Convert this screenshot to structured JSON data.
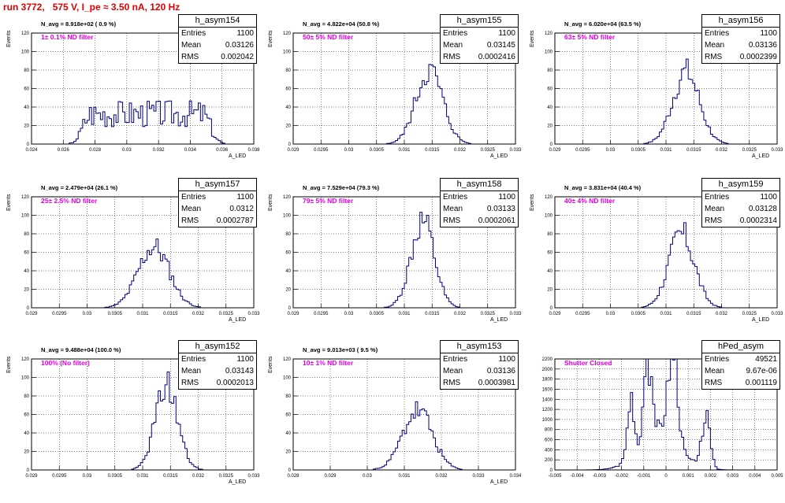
{
  "run_title": "run 3772,   575 V, I_pe ≈ 3.50 nA, 120 Hz",
  "stats_labels": {
    "entries": "Entries",
    "mean": "Mean",
    "rms": "RMS"
  },
  "colors": {
    "title": "#e00000",
    "filter": "#e000e0",
    "hist": "#000080"
  },
  "chart_data": [
    {
      "type": "bar",
      "name": "h_asym154",
      "entries": "1100",
      "mean": "0.03126",
      "rms": "0.002042",
      "navg": "N_avg = 8.918e+02 ( 0.9 %)",
      "filter": "1± 0.1% ND filter",
      "ylabel": "Events",
      "xlabel": "A_LED",
      "xlim": [
        0.024,
        0.038
      ],
      "ylim": [
        0,
        120
      ],
      "xticks": [
        0.024,
        0.026,
        0.028,
        0.03,
        0.032,
        0.034,
        0.036,
        0.038
      ],
      "xtick_labels": [
        "0.024",
        "0.026",
        "0.028",
        "0.03",
        "0.032",
        "0.034",
        "0.036",
        "0.038"
      ],
      "yticks": [
        0,
        20,
        40,
        60,
        80,
        100,
        120
      ],
      "dist": {
        "type": "flat",
        "center": 0.03126,
        "half_width": 0.0035,
        "peak": 33,
        "edge_softness": 0.0007,
        "seed": 3
      }
    },
    {
      "type": "bar",
      "name": "h_asym155",
      "entries": "1100",
      "mean": "0.03145",
      "rms": "0.0002416",
      "navg": "N_avg = 4.822e+04 (50.8 %)",
      "filter": "50± 5% ND filter",
      "ylabel": "Events",
      "xlabel": "A_LED",
      "xlim": [
        0.029,
        0.033
      ],
      "ylim": [
        0,
        120
      ],
      "xticks": [
        0.029,
        0.0295,
        0.03,
        0.0305,
        0.031,
        0.0315,
        0.032,
        0.0325,
        0.033
      ],
      "xtick_labels": [
        "0.029",
        "0.0295",
        "0.03",
        "0.0305",
        "0.031",
        "0.0315",
        "0.032",
        "0.0325",
        "0.033"
      ],
      "yticks": [
        0,
        20,
        40,
        60,
        80,
        100,
        120
      ],
      "dist": {
        "type": "gauss",
        "components": [
          {
            "mu": 0.03145,
            "sigma": 0.00024,
            "amp": 80
          }
        ],
        "seed": 5
      }
    },
    {
      "type": "bar",
      "name": "h_asym156",
      "entries": "1100",
      "mean": "0.03136",
      "rms": "0.0002399",
      "navg": "N_avg = 6.020e+04 (63.5 %)",
      "filter": "63± 5% ND filter",
      "ylabel": "Events",
      "xlabel": "A_LED",
      "xlim": [
        0.029,
        0.033
      ],
      "ylim": [
        0,
        120
      ],
      "xticks": [
        0.029,
        0.0295,
        0.03,
        0.0305,
        0.031,
        0.0315,
        0.032,
        0.0325,
        0.033
      ],
      "xtick_labels": [
        "0.029",
        "0.0295",
        "0.03",
        "0.0305",
        "0.031",
        "0.0315",
        "0.032",
        "0.0325",
        "0.033"
      ],
      "yticks": [
        0,
        20,
        40,
        60,
        80,
        100,
        120
      ],
      "dist": {
        "type": "gauss",
        "components": [
          {
            "mu": 0.03136,
            "sigma": 0.00024,
            "amp": 78
          }
        ],
        "seed": 7
      }
    },
    {
      "type": "bar",
      "name": "h_asym157",
      "entries": "1100",
      "mean": "0.0312",
      "rms": "0.0002787",
      "navg": "N_avg = 2.479e+04 (26.1 %)",
      "filter": "25± 2.5% ND filter",
      "ylabel": "Events",
      "xlabel": "A_LED",
      "xlim": [
        0.029,
        0.033
      ],
      "ylim": [
        0,
        120
      ],
      "xticks": [
        0.029,
        0.0295,
        0.03,
        0.0305,
        0.031,
        0.0315,
        0.032,
        0.0325,
        0.033
      ],
      "xtick_labels": [
        "0.029",
        "0.0295",
        "0.03",
        "0.0305",
        "0.031",
        "0.0315",
        "0.032",
        "0.0325",
        "0.033"
      ],
      "yticks": [
        0,
        20,
        40,
        60,
        80,
        100,
        120
      ],
      "dist": {
        "type": "gauss",
        "components": [
          {
            "mu": 0.0312,
            "sigma": 0.00028,
            "amp": 66
          }
        ],
        "seed": 11
      }
    },
    {
      "type": "bar",
      "name": "h_asym158",
      "entries": "1100",
      "mean": "0.03133",
      "rms": "0.0002061",
      "navg": "N_avg = 7.529e+04 (79.3 %)",
      "filter": "79± 5% ND filter",
      "ylabel": "Events",
      "xlabel": "A_LED",
      "xlim": [
        0.029,
        0.033
      ],
      "ylim": [
        0,
        120
      ],
      "xticks": [
        0.029,
        0.0295,
        0.03,
        0.0305,
        0.031,
        0.0315,
        0.032,
        0.0325,
        0.033
      ],
      "xtick_labels": [
        "0.029",
        "0.0295",
        "0.03",
        "0.0305",
        "0.031",
        "0.0315",
        "0.032",
        "0.0325",
        "0.033"
      ],
      "yticks": [
        0,
        20,
        40,
        60,
        80,
        100,
        120
      ],
      "dist": {
        "type": "gauss",
        "components": [
          {
            "mu": 0.03133,
            "sigma": 0.00021,
            "amp": 94
          }
        ],
        "seed": 13
      }
    },
    {
      "type": "bar",
      "name": "h_asym159",
      "entries": "1100",
      "mean": "0.03128",
      "rms": "0.0002314",
      "navg": "N_avg = 3.831e+04 (40.4 %)",
      "filter": "40± 4% ND filter",
      "ylabel": "Events",
      "xlabel": "A_LED",
      "xlim": [
        0.029,
        0.033
      ],
      "ylim": [
        0,
        120
      ],
      "xticks": [
        0.029,
        0.0295,
        0.03,
        0.0305,
        0.031,
        0.0315,
        0.032,
        0.0325,
        0.033
      ],
      "xtick_labels": [
        "0.029",
        "0.0295",
        "0.03",
        "0.0305",
        "0.031",
        "0.0315",
        "0.032",
        "0.0325",
        "0.033"
      ],
      "yticks": [
        0,
        20,
        40,
        60,
        80,
        100,
        120
      ],
      "dist": {
        "type": "gauss",
        "components": [
          {
            "mu": 0.03128,
            "sigma": 0.00023,
            "amp": 80
          }
        ],
        "seed": 17
      }
    },
    {
      "type": "bar",
      "name": "h_asym152",
      "entries": "1100",
      "mean": "0.03143",
      "rms": "0.0002013",
      "navg": "N_avg = 9.488e+04 (100.0 %)",
      "filter": "100% (No filter)",
      "ylabel": "Events",
      "xlabel": "A_LED",
      "xlim": [
        0.029,
        0.033
      ],
      "ylim": [
        0,
        120
      ],
      "xticks": [
        0.029,
        0.0295,
        0.03,
        0.0305,
        0.031,
        0.0315,
        0.032,
        0.0325,
        0.033
      ],
      "xtick_labels": [
        "0.029",
        "0.0295",
        "0.03",
        "0.0305",
        "0.031",
        "0.0315",
        "0.032",
        "0.0325",
        "0.033"
      ],
      "yticks": [
        0,
        20,
        40,
        60,
        80,
        100,
        120
      ],
      "dist": {
        "type": "gauss",
        "components": [
          {
            "mu": 0.03143,
            "sigma": 0.0002,
            "amp": 92
          }
        ],
        "seed": 19
      }
    },
    {
      "type": "bar",
      "name": "h_asym153",
      "entries": "1100",
      "mean": "0.03136",
      "rms": "0.0003981",
      "navg": "N_avg = 9.013e+03 ( 9.5 %)",
      "filter": "10± 1% ND filter",
      "ylabel": "Events",
      "xlabel": "A_LED",
      "xlim": [
        0.028,
        0.034
      ],
      "ylim": [
        0,
        120
      ],
      "xticks": [
        0.028,
        0.029,
        0.03,
        0.031,
        0.032,
        0.033,
        0.034
      ],
      "xtick_labels": [
        "0.028",
        "0.029",
        "0.03",
        "0.031",
        "0.032",
        "0.033",
        "0.034"
      ],
      "yticks": [
        0,
        20,
        40,
        60,
        80,
        100,
        120
      ],
      "dist": {
        "type": "gauss",
        "components": [
          {
            "mu": 0.03136,
            "sigma": 0.0004,
            "amp": 64
          }
        ],
        "seed": 23
      }
    },
    {
      "type": "bar",
      "name": "hPed_asym",
      "entries": "49521",
      "mean": "9.67e-06",
      "rms": "0.001119",
      "navg": "",
      "filter": "Shutter Closed",
      "ylabel": "",
      "xlabel": "",
      "xlim": [
        -0.005,
        0.005
      ],
      "ylim": [
        0,
        2200
      ],
      "xticks": [
        -0.005,
        -0.004,
        -0.003,
        -0.002,
        -0.001,
        0,
        0.001,
        0.002,
        0.003,
        0.004,
        0.005
      ],
      "xtick_labels": [
        "-0.005",
        "-0.004",
        "-0.003",
        "-0.002",
        "-0.001",
        "0",
        "0.001",
        "0.002",
        "0.003",
        "0.004",
        "0.005"
      ],
      "yticks": [
        0,
        200,
        400,
        600,
        800,
        1000,
        1200,
        1400,
        1600,
        1800,
        2000,
        2200
      ],
      "dist": {
        "type": "gauss",
        "components": [
          {
            "mu": -0.0016,
            "sigma": 0.00016,
            "amp": 1100
          },
          {
            "mu": -0.0008,
            "sigma": 0.0002,
            "amp": 1500
          },
          {
            "mu": 0.0003,
            "sigma": 0.00022,
            "amp": 2000
          },
          {
            "mu": 0.0018,
            "sigma": 0.00018,
            "amp": 1050
          },
          {
            "mu": -0.0003,
            "sigma": 0.0009,
            "amp": 700
          }
        ],
        "seed": 29
      }
    }
  ]
}
